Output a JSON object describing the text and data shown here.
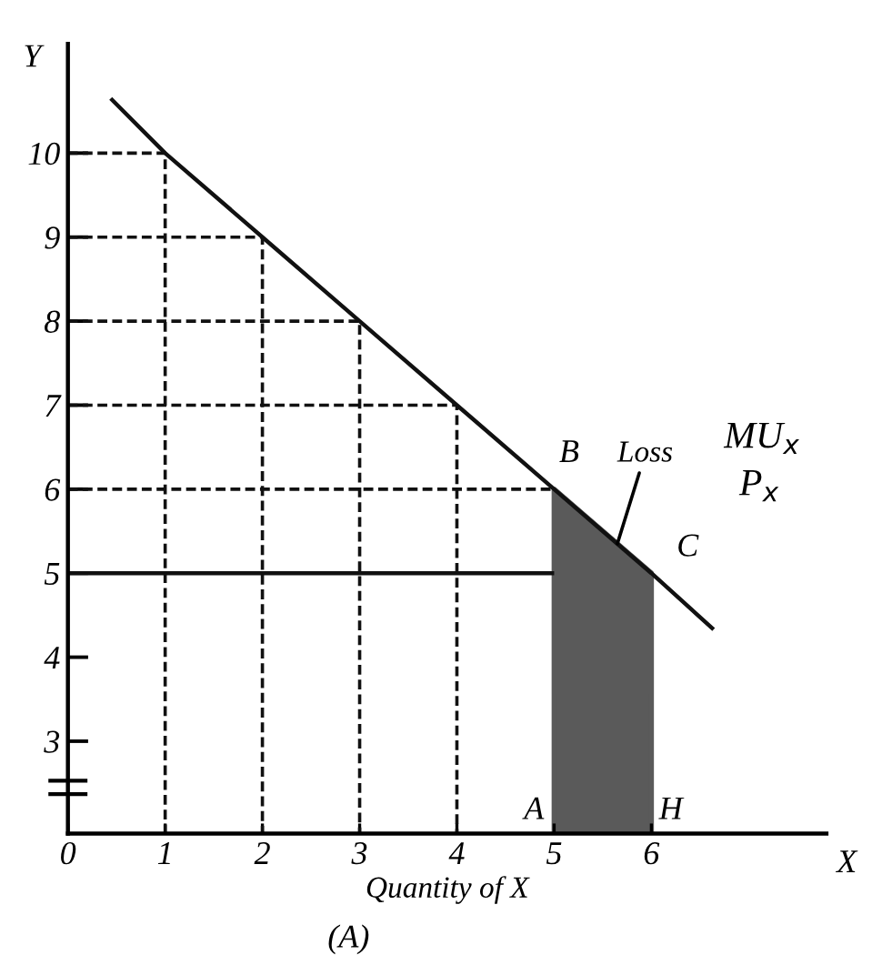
{
  "chart_data": {
    "type": "line",
    "xlabel": "Quantity of X",
    "xlim": [
      0,
      7.8
    ],
    "ylim": [
      1.9,
      11.3
    ],
    "xticks": [
      0,
      1,
      2,
      3,
      4,
      5,
      6
    ],
    "yticks": [
      3,
      4,
      5,
      6,
      7,
      8,
      9,
      10
    ],
    "grid": false,
    "marker": "none",
    "series": [
      {
        "type": "area",
        "color": "#5a5a5a",
        "x": [
          5,
          6
        ],
        "values": [
          6,
          5
        ]
      },
      {
        "color": "#111111",
        "line_style": "solid",
        "x": [
          0.44,
          1,
          2,
          3,
          4,
          5,
          6,
          6.64
        ],
        "values": [
          10.65,
          10,
          9,
          8,
          7,
          6,
          5,
          4.33
        ]
      },
      {
        "color": "#111111",
        "line_style": "solid",
        "x": [
          0,
          5
        ],
        "values": [
          5,
          5
        ]
      },
      {
        "color": "#111111",
        "line_style": "dashed",
        "x": [
          0,
          1,
          1
        ],
        "values": [
          10,
          10,
          1.9
        ]
      },
      {
        "color": "#111111",
        "line_style": "dashed",
        "x": [
          0,
          2,
          2
        ],
        "values": [
          9,
          9,
          1.9
        ]
      },
      {
        "color": "#111111",
        "line_style": "dashed",
        "x": [
          0,
          3,
          3
        ],
        "values": [
          8,
          8,
          1.9
        ]
      },
      {
        "color": "#111111",
        "line_style": "dashed",
        "x": [
          0,
          4,
          4
        ],
        "values": [
          7,
          7,
          1.9
        ]
      },
      {
        "color": "#111111",
        "line_style": "dashed",
        "x": [
          0,
          5
        ],
        "values": [
          6,
          6
        ]
      }
    ],
    "annotations": [
      {
        "text": "B",
        "x": 5,
        "y": 6
      },
      {
        "text": "C",
        "x": 6,
        "y": 5
      },
      {
        "text": "A",
        "x": 5,
        "y": 1.9
      },
      {
        "text": "H",
        "x": 6,
        "y": 1.9
      },
      {
        "text": "Loss",
        "x": 5.65,
        "y": 5.35
      },
      "MU$_{x}$",
      "P$_{x}$",
      "Y",
      "X",
      "(A)"
    ]
  }
}
